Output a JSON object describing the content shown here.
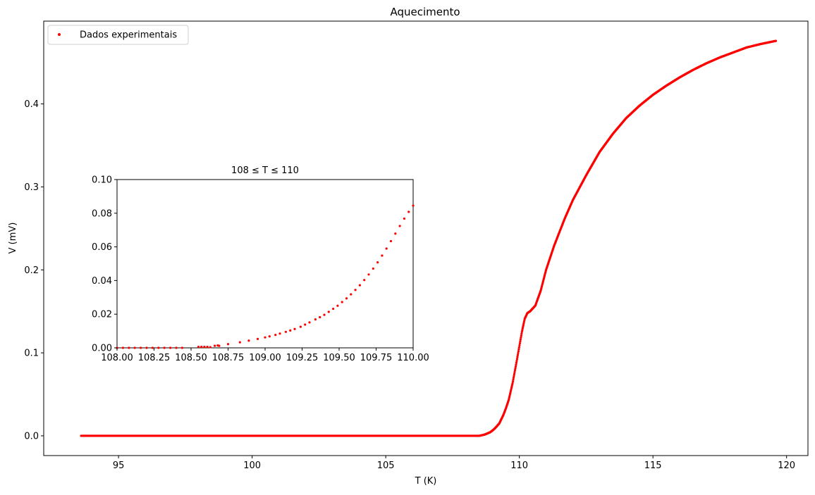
{
  "chart_data": [
    {
      "type": "scatter",
      "title": "Aquecimento",
      "xlabel": "T (K)",
      "ylabel": "V (mV)",
      "xlim": [
        92.2,
        120.8
      ],
      "ylim": [
        -0.0238,
        0.4998
      ],
      "xticks": [
        95,
        100,
        105,
        110,
        115,
        120
      ],
      "xtick_labels": [
        "95",
        "100",
        "105",
        "110",
        "115",
        "120"
      ],
      "yticks": [
        0.0,
        0.1,
        0.2,
        0.3,
        0.4
      ],
      "ytick_labels": [
        "0.0",
        "0.1",
        "0.2",
        "0.3",
        "0.4"
      ],
      "grid": false,
      "legend": {
        "position": "top-left",
        "entries": [
          "Dados experimentais"
        ]
      },
      "marker_color": "#ff0000",
      "series": [
        {
          "name": "Dados experimentais",
          "t_start": 93.6,
          "t_end": 119.6,
          "curve_points": [
            [
              93.6,
              0.0
            ],
            [
              108.5,
              0.0
            ],
            [
              108.7,
              0.0015
            ],
            [
              108.9,
              0.0042
            ],
            [
              109.0,
              0.0065
            ],
            [
              109.1,
              0.0095
            ],
            [
              109.25,
              0.015
            ],
            [
              109.4,
              0.025
            ],
            [
              109.5,
              0.0335
            ],
            [
              109.6,
              0.043
            ],
            [
              109.75,
              0.064
            ],
            [
              109.9,
              0.09
            ],
            [
              110.0,
              0.108
            ],
            [
              110.1,
              0.126
            ],
            [
              110.2,
              0.141
            ],
            [
              110.3,
              0.148
            ],
            [
              110.4,
              0.15
            ],
            [
              110.6,
              0.157
            ],
            [
              110.8,
              0.175
            ],
            [
              111.0,
              0.2
            ],
            [
              111.3,
              0.229
            ],
            [
              111.7,
              0.262
            ],
            [
              112.0,
              0.284
            ],
            [
              112.5,
              0.314
            ],
            [
              113.0,
              0.342
            ],
            [
              113.5,
              0.364
            ],
            [
              114.0,
              0.383
            ],
            [
              114.5,
              0.398
            ],
            [
              115.0,
              0.411
            ],
            [
              115.5,
              0.422
            ],
            [
              116.0,
              0.432
            ],
            [
              116.5,
              0.441
            ],
            [
              117.0,
              0.449
            ],
            [
              117.5,
              0.456
            ],
            [
              118.0,
              0.462
            ],
            [
              118.5,
              0.468
            ],
            [
              119.0,
              0.472
            ],
            [
              119.6,
              0.476
            ]
          ]
        }
      ]
    },
    {
      "type": "scatter",
      "title": "108 ≤ T ≤ 110",
      "xlabel": "",
      "ylabel": "",
      "xlim": [
        108.0,
        110.0
      ],
      "ylim": [
        0.0,
        0.1
      ],
      "xticks": [
        108.0,
        108.25,
        108.5,
        108.75,
        109.0,
        109.25,
        109.5,
        109.75,
        110.0
      ],
      "xtick_labels": [
        "108.00",
        "108.25",
        "108.50",
        "108.75",
        "109.00",
        "109.25",
        "109.50",
        "109.75",
        "110.00"
      ],
      "yticks": [
        0.0,
        0.02,
        0.04,
        0.06,
        0.08,
        0.1
      ],
      "ytick_labels": [
        "0.00",
        "0.02",
        "0.04",
        "0.06",
        "0.08",
        "0.10"
      ],
      "grid": false,
      "marker_color": "#ff0000",
      "series": [
        {
          "name": "Dados experimentais",
          "points": [
            [
              108.0,
              0.0
            ],
            [
              108.04,
              0.0
            ],
            [
              108.08,
              0.0
            ],
            [
              108.12,
              0.0
            ],
            [
              108.16,
              0.0
            ],
            [
              108.2,
              0.0
            ],
            [
              108.24,
              0.0
            ],
            [
              108.28,
              0.0
            ],
            [
              108.32,
              0.0
            ],
            [
              108.36,
              0.0
            ],
            [
              108.4,
              0.0
            ],
            [
              108.44,
              0.0
            ],
            [
              108.55,
              0.0006
            ],
            [
              108.57,
              0.0006
            ],
            [
              108.59,
              0.0006
            ],
            [
              108.61,
              0.0006
            ],
            [
              108.63,
              0.0004
            ],
            [
              108.66,
              0.0012
            ],
            [
              108.68,
              0.0014
            ],
            [
              108.69,
              0.0012
            ],
            [
              108.75,
              0.0022
            ],
            [
              108.83,
              0.0033
            ],
            [
              108.89,
              0.0043
            ],
            [
              108.95,
              0.0053
            ],
            [
              109.0,
              0.0062
            ],
            [
              109.03,
              0.0068
            ],
            [
              109.07,
              0.0077
            ],
            [
              109.1,
              0.0085
            ],
            [
              109.14,
              0.0095
            ],
            [
              109.17,
              0.0103
            ],
            [
              109.2,
              0.0112
            ],
            [
              109.24,
              0.0125
            ],
            [
              109.27,
              0.0138
            ],
            [
              109.3,
              0.0151
            ],
            [
              109.34,
              0.0169
            ],
            [
              109.37,
              0.0182
            ],
            [
              109.4,
              0.0196
            ],
            [
              109.43,
              0.0214
            ],
            [
              109.46,
              0.0232
            ],
            [
              109.49,
              0.025
            ],
            [
              109.52,
              0.0272
            ],
            [
              109.55,
              0.0294
            ],
            [
              109.58,
              0.0318
            ],
            [
              109.61,
              0.0344
            ],
            [
              109.64,
              0.0372
            ],
            [
              109.67,
              0.0403
            ],
            [
              109.7,
              0.0436
            ],
            [
              109.73,
              0.0471
            ],
            [
              109.76,
              0.0508
            ],
            [
              109.79,
              0.0548
            ],
            [
              109.82,
              0.059
            ],
            [
              109.85,
              0.0634
            ],
            [
              109.88,
              0.0679
            ],
            [
              109.91,
              0.0724
            ],
            [
              109.94,
              0.0768
            ],
            [
              109.97,
              0.0808
            ],
            [
              110.0,
              0.0845
            ]
          ]
        }
      ]
    }
  ]
}
